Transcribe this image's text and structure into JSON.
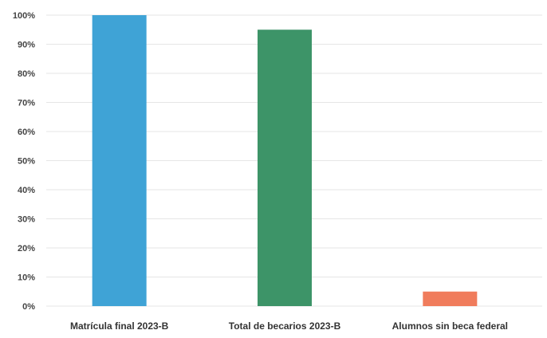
{
  "chart_data": {
    "type": "bar",
    "categories": [
      "Matrícula final 2023-B",
      "Total de becarios 2023-B",
      "Alumnos sin beca federal"
    ],
    "values": [
      100,
      95,
      5
    ],
    "colors": [
      "#3fa3d6",
      "#3d9468",
      "#f07c5c"
    ],
    "ylim": [
      0,
      100
    ],
    "yticks": [
      0,
      10,
      20,
      30,
      40,
      50,
      60,
      70,
      80,
      90,
      100
    ],
    "ytick_labels": [
      "0%",
      "10%",
      "20%",
      "30%",
      "40%",
      "50%",
      "60%",
      "70%",
      "80%",
      "90%",
      "100%"
    ],
    "grid": true,
    "title": "",
    "xlabel": "",
    "ylabel": ""
  }
}
